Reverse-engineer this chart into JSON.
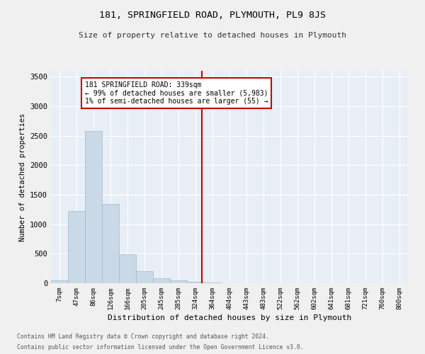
{
  "title": "181, SPRINGFIELD ROAD, PLYMOUTH, PL9 8JS",
  "subtitle": "Size of property relative to detached houses in Plymouth",
  "xlabel": "Distribution of detached houses by size in Plymouth",
  "ylabel": "Number of detached properties",
  "bar_labels": [
    "7sqm",
    "47sqm",
    "86sqm",
    "126sqm",
    "166sqm",
    "205sqm",
    "245sqm",
    "285sqm",
    "324sqm",
    "364sqm",
    "404sqm",
    "443sqm",
    "483sqm",
    "522sqm",
    "562sqm",
    "602sqm",
    "641sqm",
    "681sqm",
    "721sqm",
    "760sqm",
    "800sqm"
  ],
  "bar_values": [
    50,
    1220,
    2580,
    1340,
    490,
    200,
    90,
    50,
    20,
    10,
    5,
    3,
    2,
    1,
    1,
    0,
    0,
    0,
    0,
    0,
    0
  ],
  "bar_color": "#c9d9e8",
  "bar_edge_color": "#a0b8cc",
  "vline_color": "#cc0000",
  "annotation_text": "181 SPRINGFIELD ROAD: 339sqm\n← 99% of detached houses are smaller (5,983)\n1% of semi-detached houses are larger (55) →",
  "annotation_box_color": "#cc0000",
  "ylim": [
    0,
    3600
  ],
  "yticks": [
    0,
    500,
    1000,
    1500,
    2000,
    2500,
    3000,
    3500
  ],
  "background_color": "#e8eef5",
  "fig_background_color": "#f0f0f0",
  "grid_color": "#ffffff",
  "footnote1": "Contains HM Land Registry data © Crown copyright and database right 2024.",
  "footnote2": "Contains public sector information licensed under the Open Government Licence v3.0."
}
